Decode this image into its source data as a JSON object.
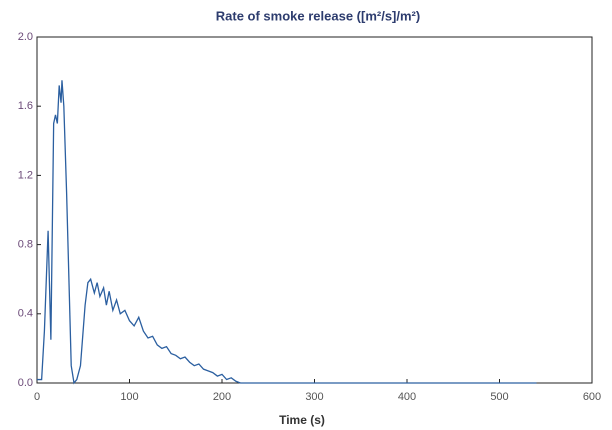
{
  "chart_data": {
    "type": "line",
    "title": "Rate of smoke release ([m²/s]/m²)",
    "x_label": "Time (s)",
    "color": "#2b5fa0",
    "x": [
      0,
      5,
      8,
      12,
      15,
      18,
      20,
      22,
      24,
      26,
      27,
      29,
      32,
      35,
      37,
      40,
      43,
      47,
      52,
      55,
      58,
      62,
      65,
      68,
      72,
      75,
      78,
      82,
      86,
      90,
      95,
      100,
      105,
      110,
      115,
      120,
      125,
      130,
      135,
      140,
      145,
      150,
      155,
      160,
      165,
      170,
      175,
      180,
      185,
      190,
      195,
      200,
      205,
      210,
      215,
      220,
      250,
      300,
      400,
      500,
      540
    ],
    "values": [
      0.02,
      0.02,
      0.3,
      0.88,
      0.25,
      1.5,
      1.55,
      1.5,
      1.72,
      1.62,
      1.75,
      1.6,
      1.1,
      0.5,
      0.1,
      0.0,
      0.02,
      0.1,
      0.45,
      0.58,
      0.6,
      0.52,
      0.58,
      0.5,
      0.55,
      0.45,
      0.53,
      0.42,
      0.48,
      0.4,
      0.42,
      0.36,
      0.33,
      0.38,
      0.3,
      0.26,
      0.27,
      0.22,
      0.2,
      0.21,
      0.17,
      0.16,
      0.14,
      0.15,
      0.12,
      0.1,
      0.11,
      0.08,
      0.07,
      0.06,
      0.04,
      0.05,
      0.02,
      0.03,
      0.01,
      0.0,
      0.0,
      0.0,
      0.0,
      0.0,
      0.0
    ],
    "xlim": [
      0,
      600
    ],
    "xticks": [
      0,
      100,
      200,
      300,
      400,
      500,
      600
    ],
    "ylim": [
      0,
      2
    ],
    "yticks": [
      {
        "value": 0,
        "label": "0.0"
      },
      {
        "value": 0.4,
        "label": "0.4"
      },
      {
        "value": 0.8,
        "label": "0.8"
      },
      {
        "value": 1.2,
        "label": "1.2"
      },
      {
        "value": 1.6,
        "label": "1.6"
      },
      {
        "value": 2,
        "label": "2.0"
      }
    ],
    "grid": false
  }
}
